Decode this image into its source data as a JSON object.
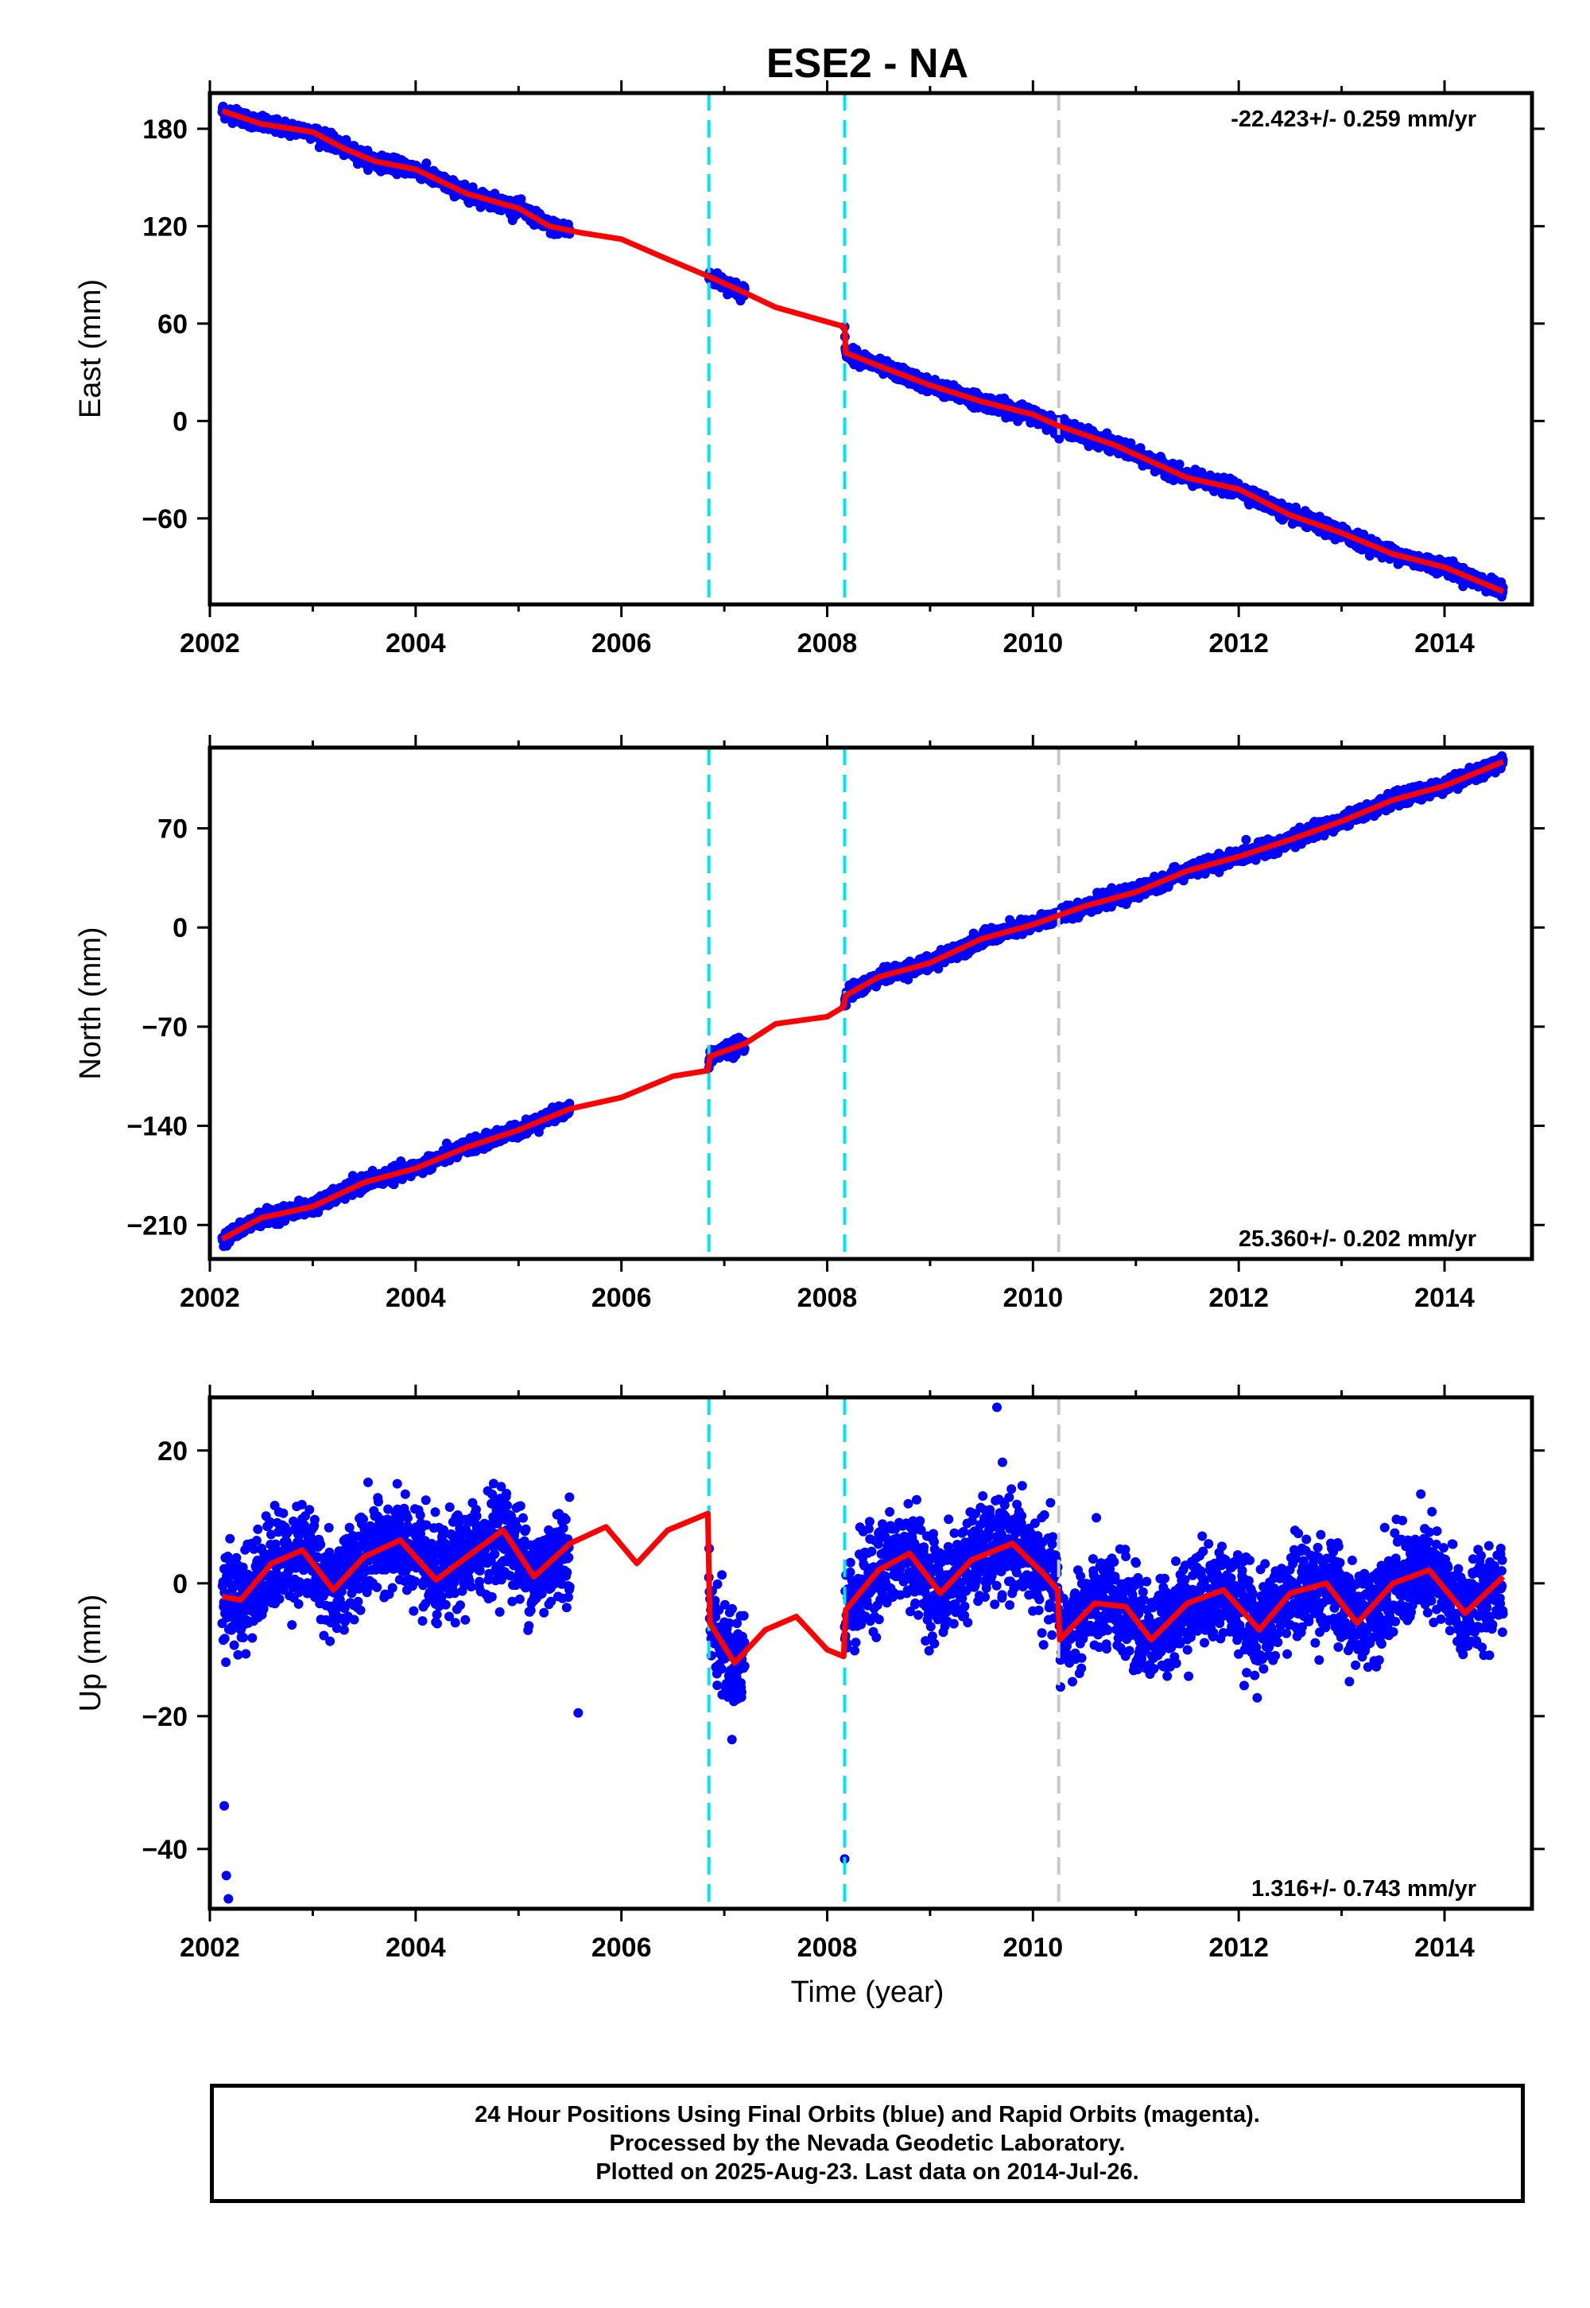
{
  "colors": {
    "final_orbits": "#0000ff",
    "model": "#ff0000",
    "offset_equipment": "#00e5ee",
    "offset_other": "#c8c8c8",
    "axes": "#000000"
  },
  "chart_data": {
    "type": "scatter",
    "title": "ESE2 - NA",
    "xlabel": "Time (year)",
    "xlim": [
      2002.0,
      2014.85
    ],
    "x_ticks": [
      "2002",
      "2004",
      "2006",
      "2008",
      "2010",
      "2012",
      "2014"
    ],
    "vertical_lines": [
      {
        "x": 2006.85,
        "style": "dashed",
        "color": "cyan"
      },
      {
        "x": 2008.17,
        "style": "dashed",
        "color": "cyan"
      },
      {
        "x": 2010.25,
        "style": "dashed",
        "color": "gray"
      }
    ],
    "panels": [
      {
        "id": "east",
        "ylabel": "East (mm)",
        "ylim": [
          -113,
          202
        ],
        "y_ticks": [
          "180",
          "120",
          "60",
          "0",
          "−60"
        ],
        "rate_label": "-22.423+/- 0.259 mm/yr",
        "rate_position": "top-right",
        "series": [
          {
            "name": "Final Orbits (blue)",
            "type": "scatter",
            "data_spans": [
              [
                2002.12,
                2005.5
              ],
              [
                2006.85,
                2007.2
              ],
              [
                2008.17,
                2014.57
              ]
            ]
          },
          {
            "type": "line",
            "points": [
              [
                2002.12,
                191
              ],
              [
                2002.5,
                183
              ],
              [
                2003.0,
                178
              ],
              [
                2003.3,
                168
              ],
              [
                2003.6,
                160
              ],
              [
                2004.0,
                155
              ],
              [
                2004.5,
                140
              ],
              [
                2005.0,
                131
              ],
              [
                2005.3,
                120
              ],
              [
                2005.6,
                116
              ],
              [
                2006.0,
                112
              ],
              [
                2006.4,
                101
              ],
              [
                2006.85,
                89
              ],
              [
                2007.2,
                79
              ],
              [
                2007.5,
                70
              ],
              [
                2008.17,
                58
              ],
              [
                2008.18,
                42
              ],
              [
                2008.5,
                34
              ],
              [
                2009.0,
                22
              ],
              [
                2009.5,
                12
              ],
              [
                2010.0,
                4
              ],
              [
                2010.25,
                -3
              ],
              [
                2010.8,
                -15
              ],
              [
                2011.5,
                -35
              ],
              [
                2012.0,
                -42
              ],
              [
                2012.5,
                -58
              ],
              [
                2013.0,
                -69
              ],
              [
                2013.5,
                -82
              ],
              [
                2014.0,
                -90
              ],
              [
                2014.57,
                -105
              ]
            ]
          }
        ]
      },
      {
        "id": "north",
        "ylabel": "North (mm)",
        "ylim": [
          -234,
          127
        ],
        "y_ticks": [
          "70",
          "0",
          "−70",
          "−140",
          "−210"
        ],
        "rate_label": "25.360+/- 0.202 mm/yr",
        "rate_position": "bottom-right",
        "series": [
          {
            "name": "Final Orbits (blue)",
            "type": "scatter",
            "data_spans": [
              [
                2002.12,
                2005.5
              ],
              [
                2006.85,
                2007.2
              ],
              [
                2008.17,
                2014.57
              ]
            ]
          },
          {
            "type": "line",
            "points": [
              [
                2002.12,
                -220
              ],
              [
                2002.5,
                -205
              ],
              [
                2003.0,
                -197
              ],
              [
                2003.5,
                -180
              ],
              [
                2004.0,
                -170
              ],
              [
                2004.5,
                -155
              ],
              [
                2005.0,
                -143
              ],
              [
                2005.5,
                -128
              ],
              [
                2006.0,
                -120
              ],
              [
                2006.5,
                -105
              ],
              [
                2006.84,
                -101
              ],
              [
                2006.86,
                -91
              ],
              [
                2007.2,
                -82
              ],
              [
                2007.5,
                -68
              ],
              [
                2008.0,
                -63
              ],
              [
                2008.16,
                -56
              ],
              [
                2008.18,
                -48
              ],
              [
                2008.5,
                -35
              ],
              [
                2009.0,
                -25
              ],
              [
                2009.5,
                -8
              ],
              [
                2010.0,
                2
              ],
              [
                2010.5,
                15
              ],
              [
                2011.0,
                25
              ],
              [
                2011.5,
                40
              ],
              [
                2012.0,
                50
              ],
              [
                2012.5,
                62
              ],
              [
                2013.0,
                75
              ],
              [
                2013.5,
                90
              ],
              [
                2014.0,
                100
              ],
              [
                2014.57,
                117
              ]
            ]
          }
        ]
      },
      {
        "id": "up",
        "ylabel": "Up (mm)",
        "ylim": [
          -49,
          28
        ],
        "y_ticks": [
          "20",
          "0",
          "−20",
          "−40"
        ],
        "rate_label": "1.316+/- 0.743 mm/yr",
        "rate_position": "bottom-right",
        "series": [
          {
            "name": "Final Orbits (blue)",
            "type": "scatter",
            "data_spans": [
              [
                2002.12,
                2005.5
              ],
              [
                2006.85,
                2007.2
              ],
              [
                2008.17,
                2014.57
              ]
            ],
            "outliers": [
              [
                2002.14,
                -33.5
              ],
              [
                2002.16,
                -44
              ],
              [
                2002.18,
                -47.5
              ],
              [
                2008.17,
                -41.5
              ],
              [
                2009.65,
                26.5
              ],
              [
                2005.58,
                -19.5
              ]
            ]
          },
          {
            "type": "line",
            "points": [
              [
                2002.12,
                -2
              ],
              [
                2002.3,
                -2.5
              ],
              [
                2002.6,
                3
              ],
              [
                2002.9,
                5
              ],
              [
                2003.2,
                -1
              ],
              [
                2003.5,
                4
              ],
              [
                2003.85,
                6.5
              ],
              [
                2004.2,
                0.5
              ],
              [
                2004.5,
                4
              ],
              [
                2004.85,
                8
              ],
              [
                2005.15,
                1
              ],
              [
                2005.5,
                6
              ],
              [
                2005.85,
                8.5
              ],
              [
                2006.15,
                3
              ],
              [
                2006.45,
                8
              ],
              [
                2006.84,
                10.5
              ],
              [
                2006.86,
                -6
              ],
              [
                2007.1,
                -12
              ],
              [
                2007.4,
                -7
              ],
              [
                2007.7,
                -5
              ],
              [
                2008.0,
                -10
              ],
              [
                2008.16,
                -11
              ],
              [
                2008.18,
                -4
              ],
              [
                2008.5,
                2
              ],
              [
                2008.8,
                4.5
              ],
              [
                2009.1,
                -1.5
              ],
              [
                2009.4,
                3.5
              ],
              [
                2009.8,
                6
              ],
              [
                2010.1,
                1.5
              ],
              [
                2010.24,
                -1
              ],
              [
                2010.26,
                -8.5
              ],
              [
                2010.6,
                -3
              ],
              [
                2010.9,
                -3.5
              ],
              [
                2011.15,
                -8.5
              ],
              [
                2011.5,
                -3
              ],
              [
                2011.85,
                -1
              ],
              [
                2012.2,
                -7
              ],
              [
                2012.5,
                -1.5
              ],
              [
                2012.85,
                0
              ],
              [
                2013.15,
                -6
              ],
              [
                2013.5,
                0
              ],
              [
                2013.85,
                2
              ],
              [
                2014.2,
                -4.5
              ],
              [
                2014.57,
                1
              ]
            ]
          }
        ]
      }
    ]
  },
  "footer": {
    "line1": "24 Hour Positions Using Final Orbits (blue) and Rapid Orbits (magenta).",
    "line2": "Processed by the Nevada Geodetic Laboratory.",
    "line3": "Plotted on 2025-Aug-23. Last data on 2014-Jul-26."
  }
}
